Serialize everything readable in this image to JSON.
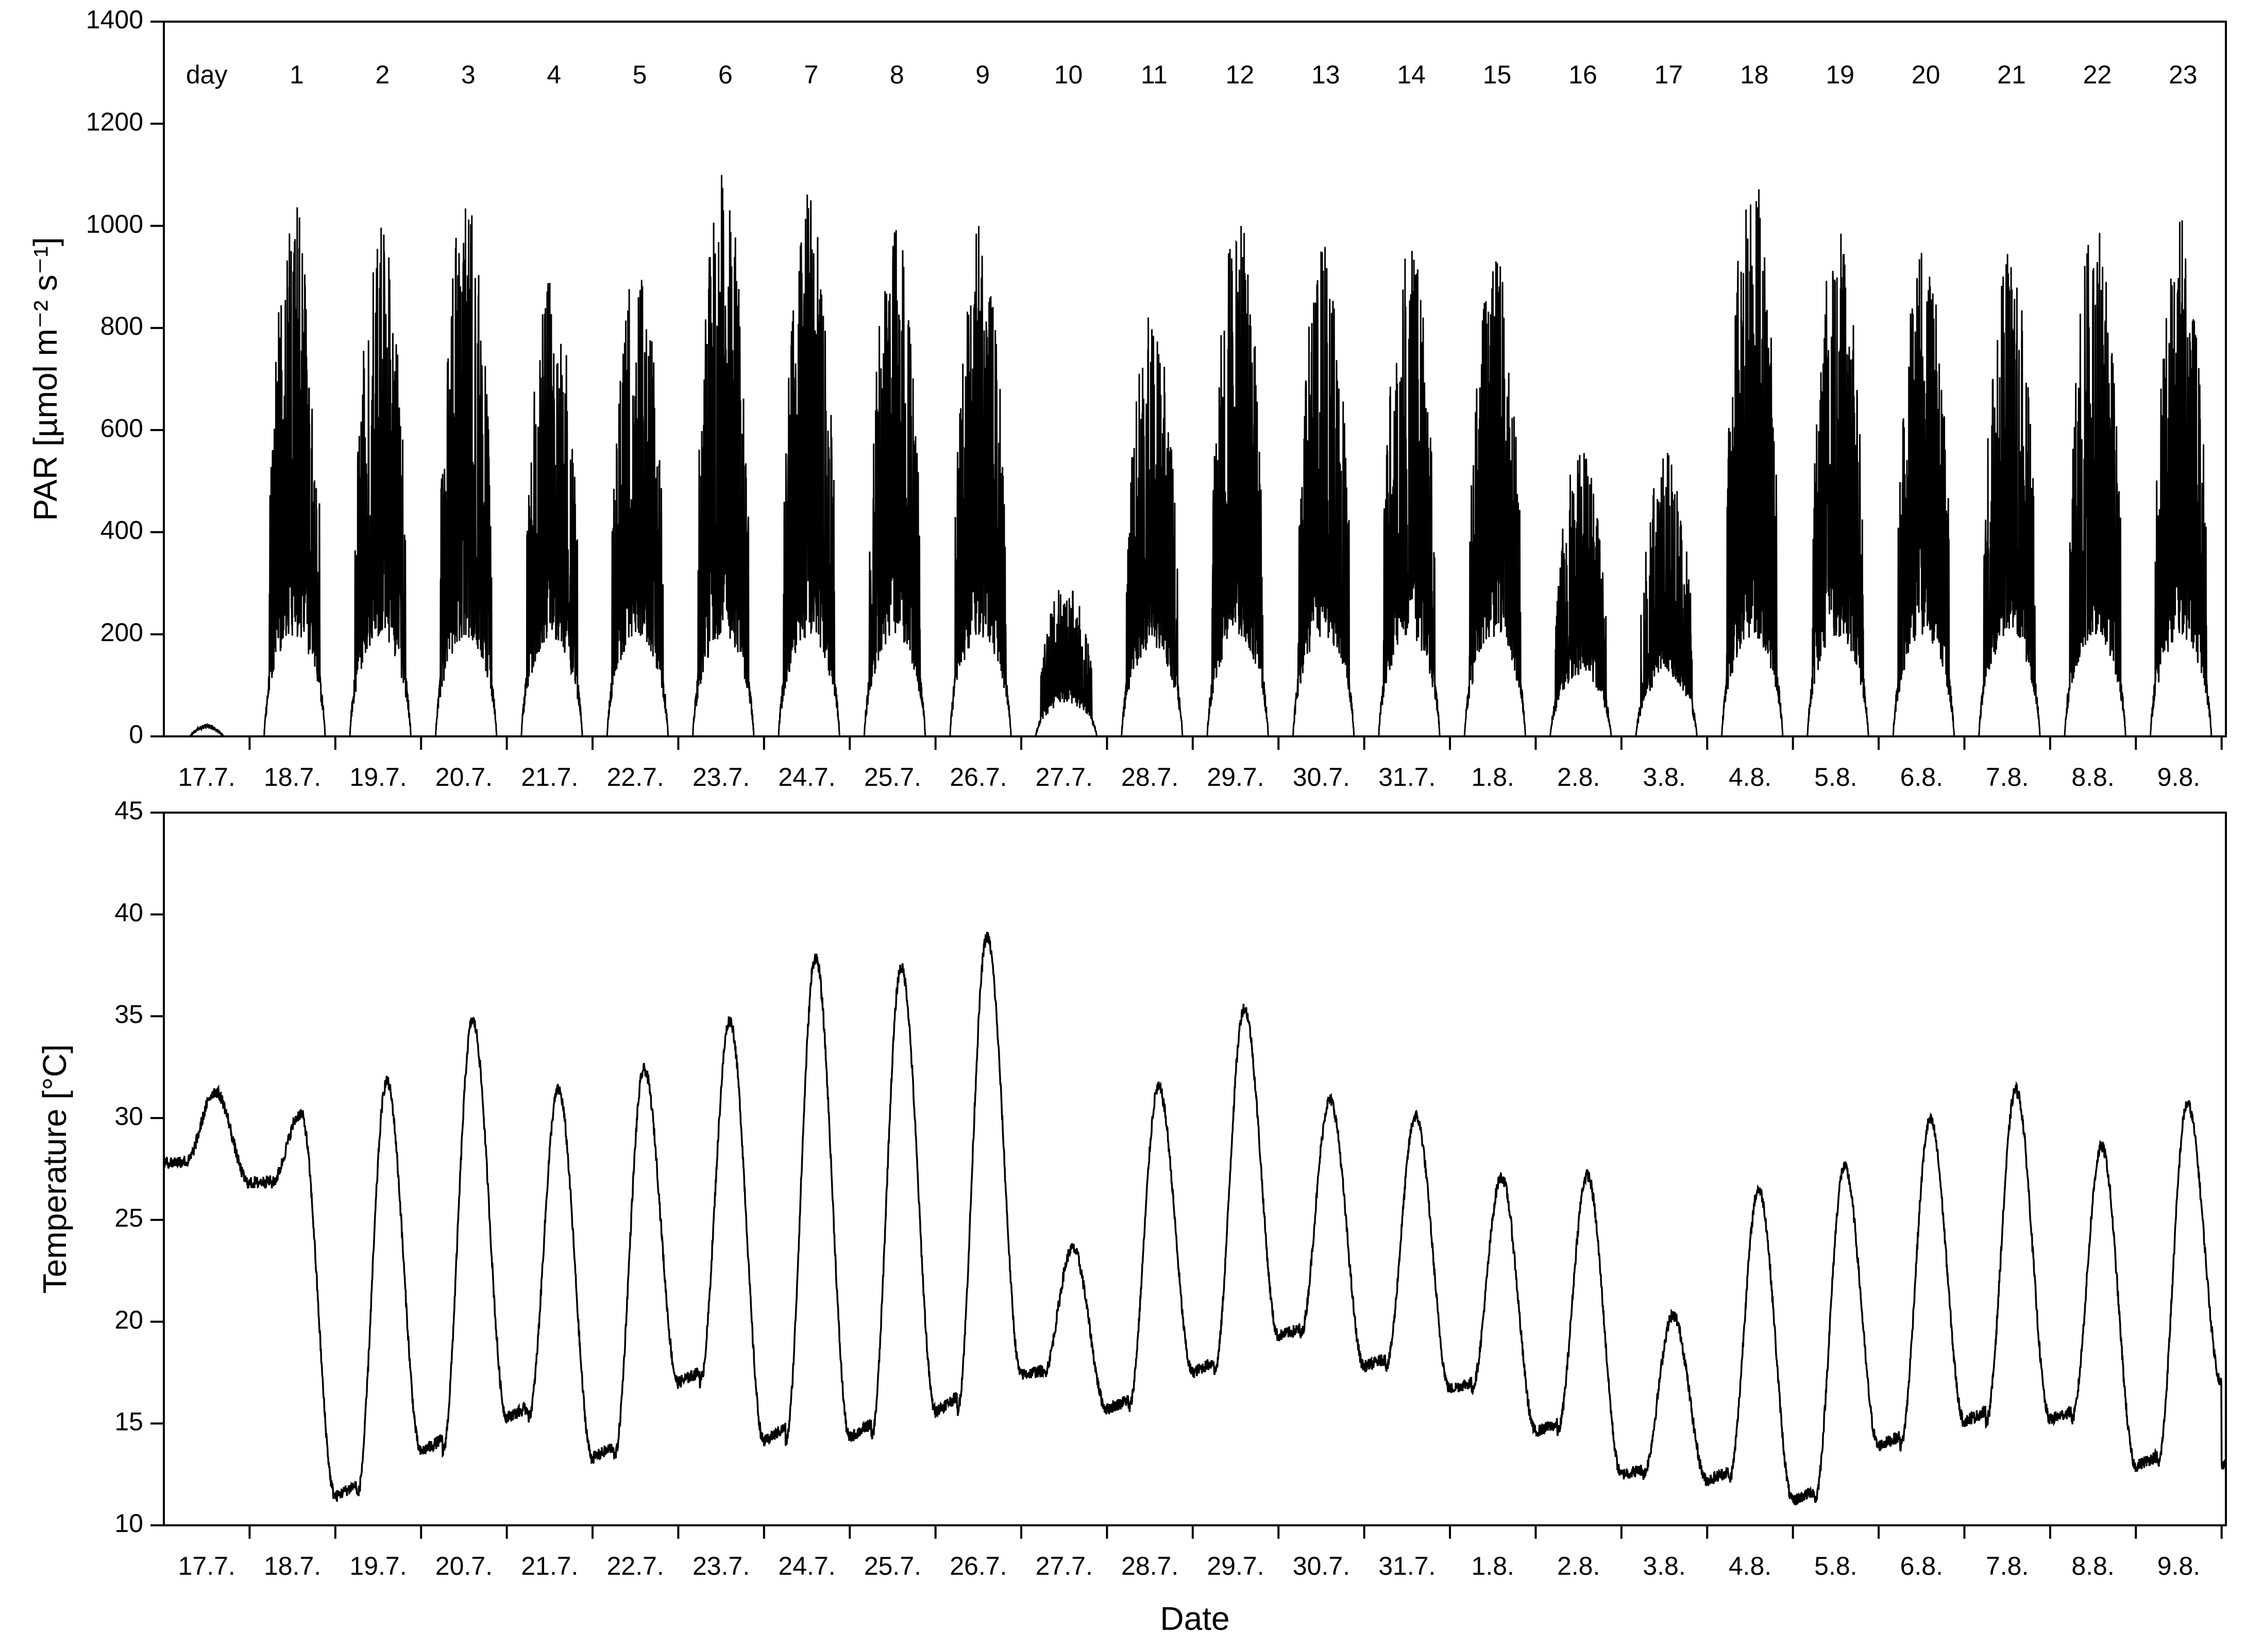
{
  "chart_data": [
    {
      "type": "line",
      "panel": "top",
      "xlabel": "",
      "ylabel": "PAR [µmol m⁻² s⁻¹]",
      "ylim": [
        0,
        1400
      ],
      "yticks": [
        0,
        200,
        400,
        600,
        800,
        1000,
        1200,
        1400
      ],
      "x_tick_labels": [
        "17.7.",
        "18.7.",
        "19.7.",
        "20.7.",
        "21.7.",
        "22.7.",
        "23.7.",
        "24.7.",
        "25.7.",
        "26.7.",
        "27.7.",
        "28.7.",
        "29.7.",
        "30.7.",
        "31.7.",
        "1.8.",
        "2.8.",
        "3.8.",
        "4.8.",
        "5.8.",
        "6.8.",
        "7.8.",
        "8.8.",
        "9.8."
      ],
      "day_header": "day",
      "day_numbers": [
        "1",
        "2",
        "3",
        "4",
        "5",
        "6",
        "7",
        "8",
        "9",
        "10",
        "11",
        "12",
        "13",
        "14",
        "15",
        "16",
        "17",
        "18",
        "19",
        "20",
        "21",
        "22",
        "23"
      ],
      "daily_peak_par": [
        1050,
        1000,
        1065,
        915,
        945,
        1120,
        1065,
        1010,
        1010,
        305,
        830,
        1020,
        975,
        975,
        950,
        570,
        560,
        1120,
        1000,
        975,
        965,
        1025,
        1020
      ],
      "first_day_peak_par_17_7": 25,
      "grid": false,
      "legend": "none"
    },
    {
      "type": "line",
      "panel": "bottom",
      "xlabel": "Date",
      "ylabel": "Temperature [°C]",
      "ylim": [
        10,
        45
      ],
      "yticks": [
        10,
        15,
        20,
        25,
        30,
        35,
        40,
        45
      ],
      "x_tick_labels": [
        "17.7.",
        "18.7.",
        "19.7.",
        "20.7.",
        "21.7.",
        "22.7.",
        "23.7.",
        "24.7.",
        "25.7.",
        "26.7.",
        "27.7.",
        "28.7.",
        "29.7.",
        "30.7.",
        "31.7.",
        "1.8.",
        "2.8.",
        "3.8.",
        "4.8.",
        "5.8.",
        "6.8.",
        "7.8.",
        "8.8.",
        "9.8."
      ],
      "daily_min_c": [
        27.8,
        26.8,
        11.4,
        13.6,
        15.3,
        13.3,
        17.0,
        14.1,
        14.3,
        15.6,
        17.4,
        15.7,
        17.5,
        19.3,
        17.8,
        16.7,
        14.6,
        12.5,
        12.2,
        11.2,
        13.9,
        15.1,
        15.2,
        12.9
      ],
      "daily_max_c": [
        31.3,
        30.2,
        31.8,
        34.8,
        31.4,
        32.4,
        34.8,
        37.9,
        37.4,
        38.9,
        23.6,
        31.5,
        35.4,
        30.9,
        30.1,
        27.1,
        27.2,
        20.3,
        26.5,
        27.6,
        29.9,
        31.4,
        28.6,
        30.7
      ],
      "end_value_c": 17.0,
      "grid": false,
      "legend": "none"
    }
  ]
}
